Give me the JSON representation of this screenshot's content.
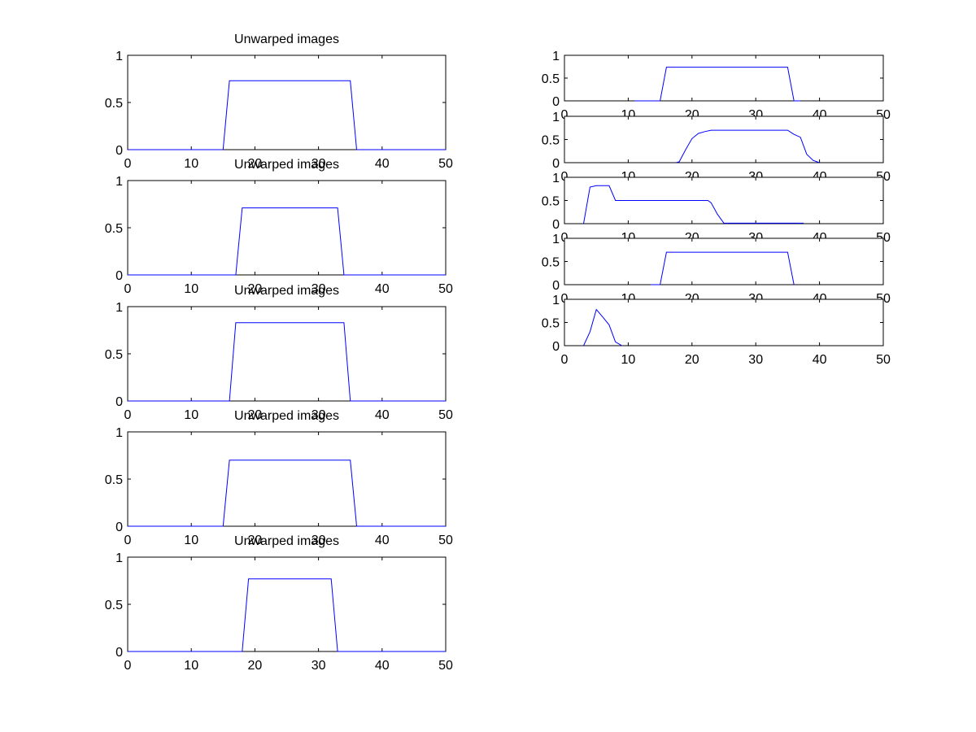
{
  "figure": {
    "background": "#ffffff",
    "line_color": "#0000ff"
  },
  "chart_data": [
    {
      "type": "line",
      "column": "left",
      "title": "Unwarped images",
      "xlim": [
        0,
        50
      ],
      "ylim": [
        0,
        1
      ],
      "xticks": [
        "0",
        "10",
        "20",
        "30",
        "40",
        "50"
      ],
      "yticks": [
        "0",
        "0.5",
        "1"
      ],
      "series": [
        {
          "x": [
            0,
            15,
            16,
            35,
            36,
            50
          ],
          "y": [
            0,
            0,
            0.73,
            0.73,
            0,
            0
          ]
        }
      ]
    },
    {
      "type": "line",
      "column": "left",
      "title": "Unwarped images",
      "xlim": [
        0,
        50
      ],
      "ylim": [
        0,
        1
      ],
      "xticks": [
        "0",
        "10",
        "20",
        "30",
        "40",
        "50"
      ],
      "yticks": [
        "0",
        "0.5",
        "1"
      ],
      "series": [
        {
          "x": [
            0,
            17,
            18,
            33,
            34,
            50
          ],
          "y": [
            0,
            0,
            0.71,
            0.71,
            0,
            0
          ]
        }
      ]
    },
    {
      "type": "line",
      "column": "left",
      "title": "Unwarped images",
      "xlim": [
        0,
        50
      ],
      "ylim": [
        0,
        1
      ],
      "xticks": [
        "0",
        "10",
        "20",
        "30",
        "40",
        "50"
      ],
      "yticks": [
        "0",
        "0.5",
        "1"
      ],
      "series": [
        {
          "x": [
            0,
            16,
            17,
            34,
            35,
            50
          ],
          "y": [
            0,
            0,
            0.83,
            0.83,
            0,
            0
          ]
        }
      ]
    },
    {
      "type": "line",
      "column": "left",
      "title": "Unwarped images",
      "xlim": [
        0,
        50
      ],
      "ylim": [
        0,
        1
      ],
      "xticks": [
        "0",
        "10",
        "20",
        "30",
        "40",
        "50"
      ],
      "yticks": [
        "0",
        "0.5",
        "1"
      ],
      "series": [
        {
          "x": [
            0,
            15,
            16,
            35,
            36,
            50
          ],
          "y": [
            0,
            0,
            0.7,
            0.7,
            0,
            0
          ]
        }
      ]
    },
    {
      "type": "line",
      "column": "left",
      "title": "Unwarped images",
      "xlim": [
        0,
        50
      ],
      "ylim": [
        0,
        1
      ],
      "xticks": [
        "0",
        "10",
        "20",
        "30",
        "40",
        "50"
      ],
      "yticks": [
        "0",
        "0.5",
        "1"
      ],
      "series": [
        {
          "x": [
            0,
            18,
            19,
            32,
            33,
            50
          ],
          "y": [
            0,
            0,
            0.77,
            0.77,
            0,
            0
          ]
        }
      ]
    },
    {
      "type": "line",
      "column": "right",
      "title": "",
      "xlim": [
        0,
        50
      ],
      "ylim": [
        0,
        1
      ],
      "xticks": [
        "0",
        "10",
        "20",
        "30",
        "40",
        "50"
      ],
      "yticks": [
        "0",
        "0.5",
        "1"
      ],
      "series": [
        {
          "x": [
            11,
            15,
            16,
            35,
            36,
            37
          ],
          "y": [
            0,
            0,
            0.74,
            0.74,
            0,
            0
          ]
        }
      ]
    },
    {
      "type": "line",
      "column": "right",
      "title": "",
      "xlim": [
        0,
        50
      ],
      "ylim": [
        0,
        1
      ],
      "xticks": [
        "0",
        "10",
        "20",
        "30",
        "40",
        "50"
      ],
      "yticks": [
        "0",
        "0.5",
        "1"
      ],
      "series": [
        {
          "x": [
            17.5,
            18,
            19,
            20,
            21,
            22,
            23,
            25,
            30,
            35,
            36,
            37,
            38,
            39,
            40
          ],
          "y": [
            0,
            0.02,
            0.28,
            0.52,
            0.63,
            0.67,
            0.7,
            0.7,
            0.7,
            0.7,
            0.61,
            0.55,
            0.18,
            0.05,
            0
          ]
        }
      ]
    },
    {
      "type": "line",
      "column": "right",
      "title": "",
      "xlim": [
        0,
        50
      ],
      "ylim": [
        0,
        1
      ],
      "xticks": [
        "0",
        "10",
        "20",
        "30",
        "40",
        "50"
      ],
      "yticks": [
        "0",
        "0.5",
        "1"
      ],
      "series": [
        {
          "x": [
            3,
            4,
            5,
            7,
            8,
            15,
            22.5,
            23,
            24,
            25,
            37.5
          ],
          "y": [
            0,
            0.79,
            0.82,
            0.82,
            0.5,
            0.5,
            0.5,
            0.45,
            0.2,
            0.01,
            0.01
          ]
        }
      ]
    },
    {
      "type": "line",
      "column": "right",
      "title": "",
      "xlim": [
        0,
        50
      ],
      "ylim": [
        0,
        1
      ],
      "xticks": [
        "0",
        "10",
        "20",
        "30",
        "40",
        "50"
      ],
      "yticks": [
        "0",
        "0.5",
        "1"
      ],
      "series": [
        {
          "x": [
            13.5,
            15,
            16,
            35,
            36
          ],
          "y": [
            0,
            0,
            0.7,
            0.7,
            0
          ]
        }
      ]
    },
    {
      "type": "line",
      "column": "right",
      "title": "",
      "xlim": [
        0,
        50
      ],
      "ylim": [
        0,
        1
      ],
      "xticks": [
        "0",
        "10",
        "20",
        "30",
        "40",
        "50"
      ],
      "yticks": [
        "0",
        "0.5",
        "1"
      ],
      "series": [
        {
          "x": [
            3,
            4,
            5,
            6,
            7,
            8,
            9
          ],
          "y": [
            0,
            0.3,
            0.78,
            0.62,
            0.45,
            0.08,
            0
          ]
        }
      ]
    }
  ]
}
